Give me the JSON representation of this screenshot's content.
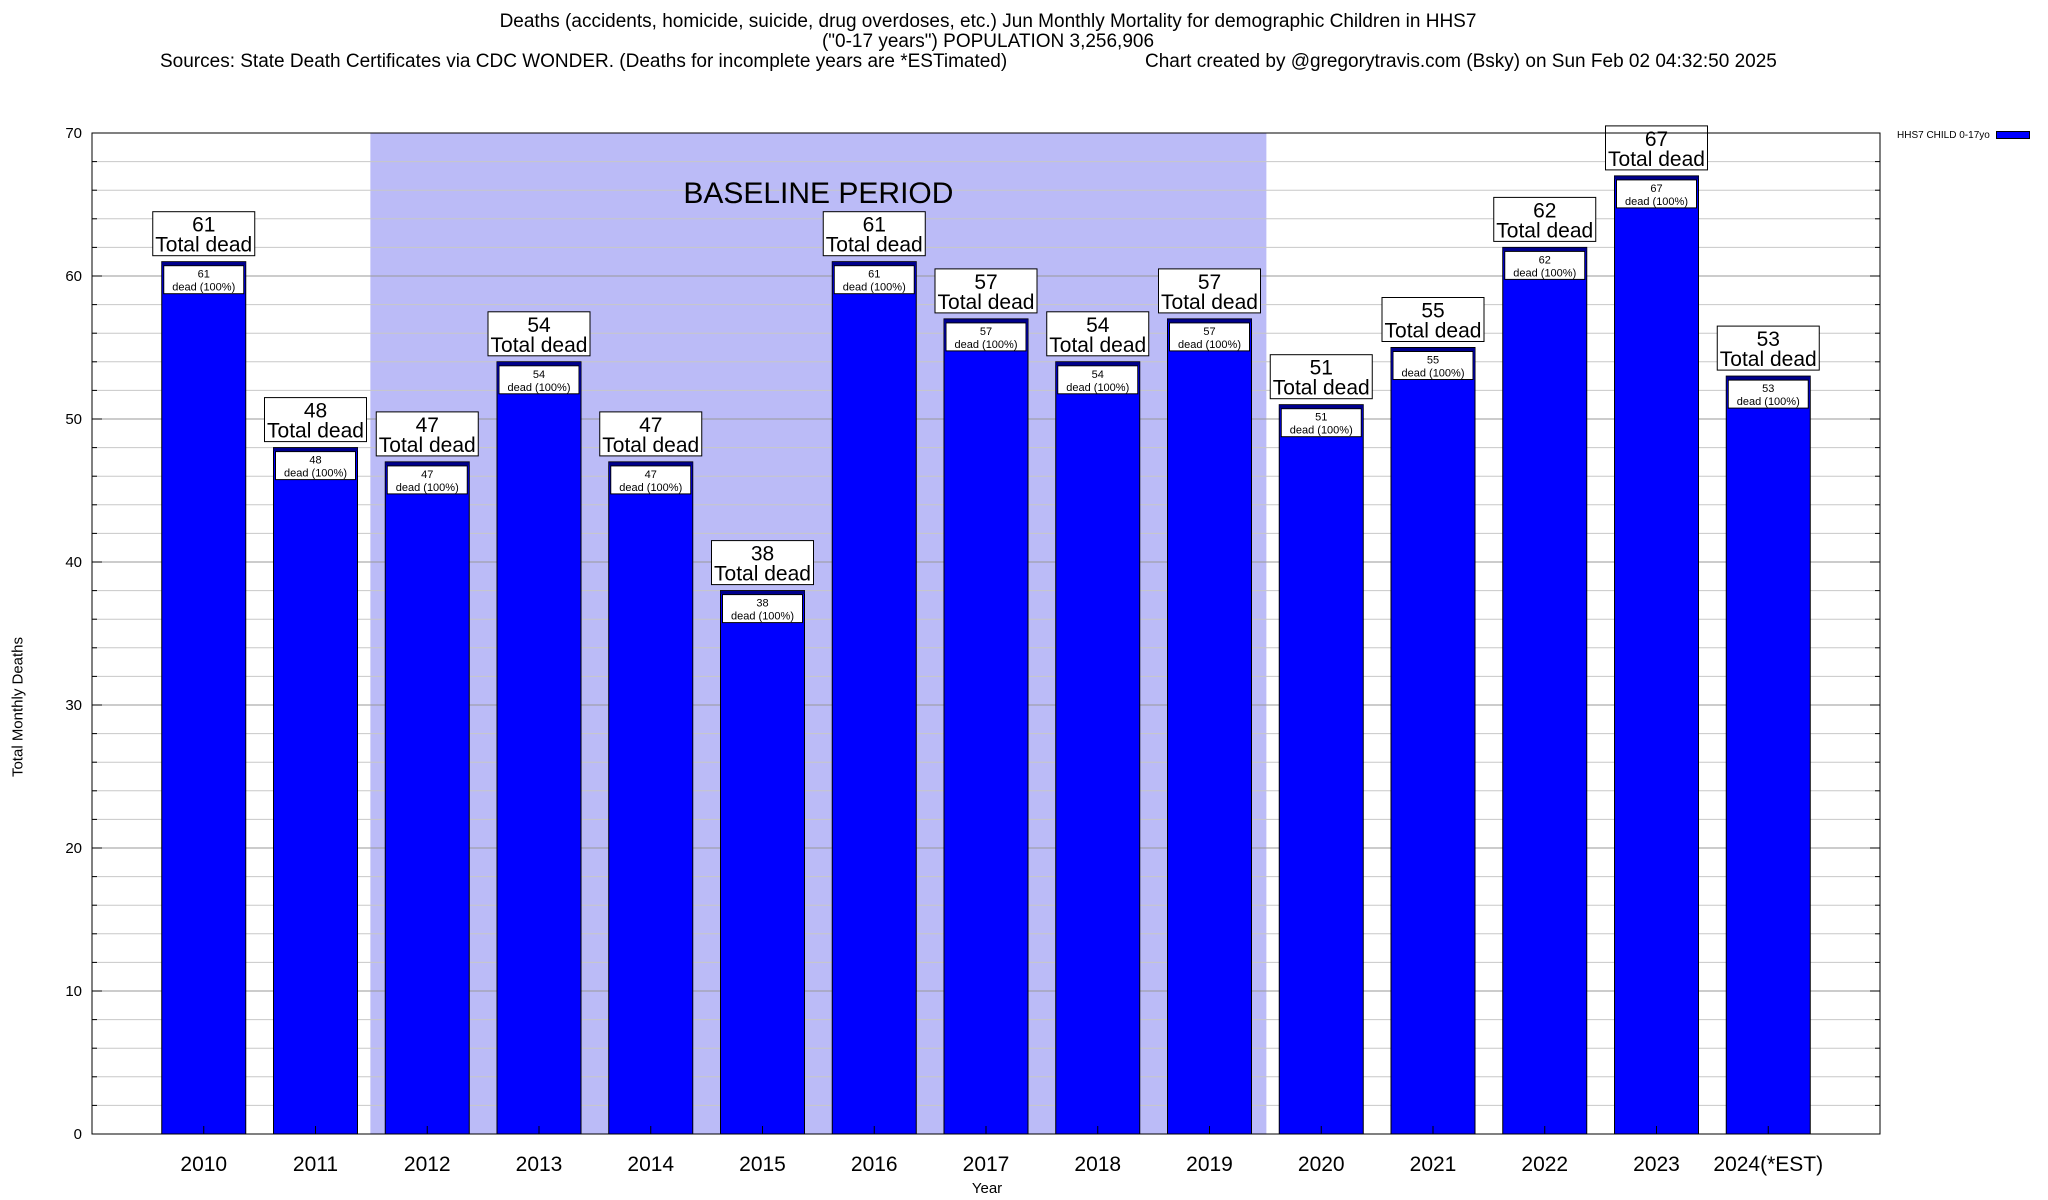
{
  "title": {
    "line1": "Deaths (accidents, homicide, suicide, drug overdoses, etc.) Jun Monthly Mortality for demographic Children in HHS7",
    "line2": "(\"0-17 years\") POPULATION 3,256,906",
    "sources": "Sources: State Death Certificates via CDC WONDER. (Deaths for incomplete years are *ESTimated)",
    "credit": "Chart created by @gregorytravis.com (Bsky) on Sun Feb 02 04:32:50 2025"
  },
  "legend": {
    "label": "HHS7 CHILD 0-17yo",
    "color": "#0000ff"
  },
  "baseline": {
    "label": "BASELINE PERIOD",
    "from": "2012",
    "to": "2019",
    "color": "#bbbbf7"
  },
  "chart_data": {
    "type": "bar",
    "xlabel": "Year",
    "ylabel": "Total Monthly Deaths",
    "ylim": [
      0,
      70
    ],
    "yticks": [
      0,
      10,
      20,
      30,
      40,
      50,
      60,
      70
    ],
    "grid": true,
    "legend_position": "top-right",
    "categories": [
      "2010",
      "2011",
      "2012",
      "2013",
      "2014",
      "2015",
      "2016",
      "2017",
      "2018",
      "2019",
      "2020",
      "2021",
      "2022",
      "2023",
      "2024(*EST)"
    ],
    "series": [
      {
        "name": "HHS7 CHILD 0-17yo",
        "color": "#0000ff",
        "values": [
          61,
          48,
          47,
          54,
          47,
          38,
          61,
          57,
          54,
          57,
          51,
          55,
          62,
          67,
          53
        ]
      }
    ],
    "top_label_suffix": "Total dead",
    "inner_label_suffix": "dead (100%)"
  }
}
